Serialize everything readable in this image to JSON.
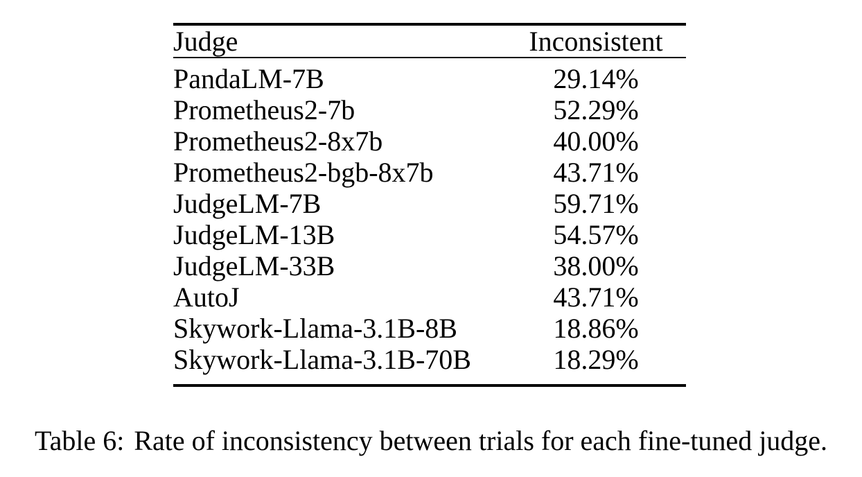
{
  "page": {
    "background": "#ffffff",
    "text_color": "#000000"
  },
  "table": {
    "columns": {
      "judge": "Judge",
      "inconsistent": "Inconsistent"
    },
    "rows": [
      {
        "judge": "PandaLM-7B",
        "inconsistent": "29.14%"
      },
      {
        "judge": "Prometheus2-7b",
        "inconsistent": "52.29%"
      },
      {
        "judge": "Prometheus2-8x7b",
        "inconsistent": "40.00%"
      },
      {
        "judge": "Prometheus2-bgb-8x7b",
        "inconsistent": "43.71%"
      },
      {
        "judge": "JudgeLM-7B",
        "inconsistent": "59.71%"
      },
      {
        "judge": "JudgeLM-13B",
        "inconsistent": "54.57%"
      },
      {
        "judge": "JudgeLM-33B",
        "inconsistent": "38.00%"
      },
      {
        "judge": "AutoJ",
        "inconsistent": "43.71%"
      },
      {
        "judge": "Skywork-Llama-3.1B-8B",
        "inconsistent": "18.86%"
      },
      {
        "judge": "Skywork-Llama-3.1B-70B",
        "inconsistent": "18.29%"
      }
    ]
  },
  "caption": {
    "label": "Table 6:",
    "text": "Rate of inconsistency between trials for each fine-tuned judge."
  }
}
